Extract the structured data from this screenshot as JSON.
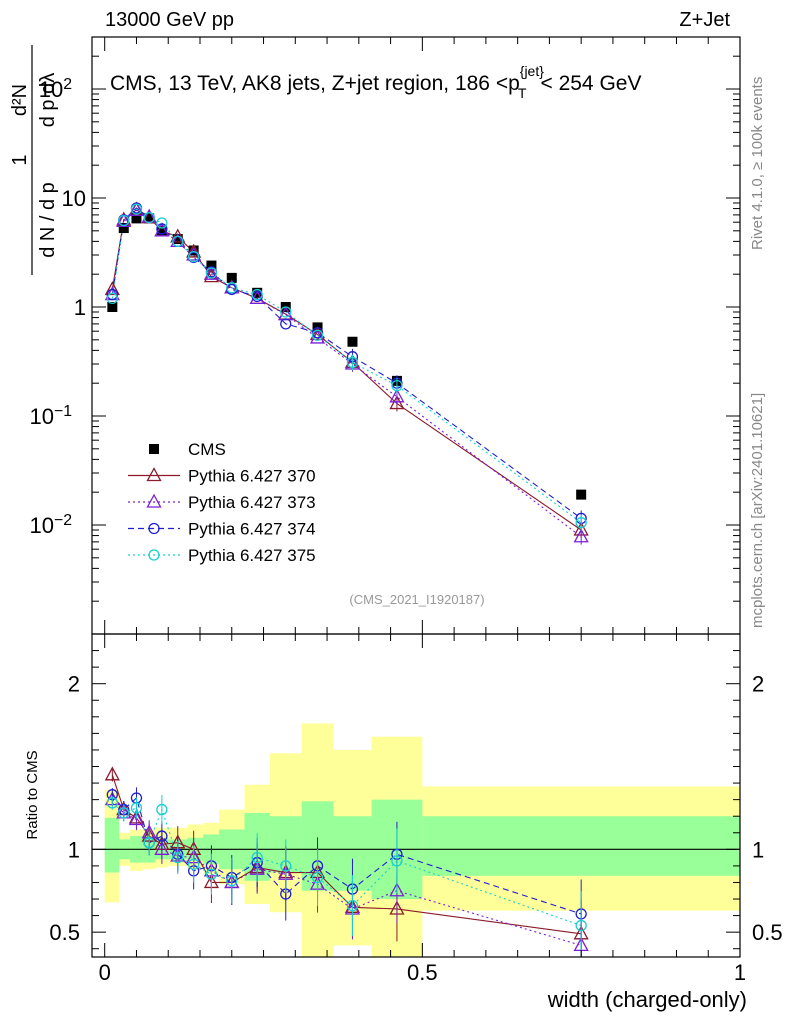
{
  "header": {
    "energy_label": "13000 GeV pp",
    "process_label": "Z+Jet",
    "rivet_label": "Rivet 4.1.0, ≥ 100k events",
    "mcplots_label": "mcplots.cern.ch [arXiv:2401.10621]"
  },
  "chart_data": [
    {
      "type": "line",
      "panel": "main",
      "title": "CMS, 13 TeV, AK8 jets, Z+jet region, 186 <p_T^{jet}< 254 GeV",
      "analysis_id": "(CMS_2021_I1920187)",
      "xlabel": "width (charged-only)",
      "ylabel": "1/dN/dp_T · d²N/dp_T dλ",
      "yscale": "log",
      "xlim": [
        -0.02,
        1.0
      ],
      "ylim": [
        0.001,
        300
      ],
      "y_tick_labels": [
        "10^{-2}",
        "10^{-1}",
        "1",
        "10",
        "10^{2}"
      ],
      "x": [
        0.012,
        0.03,
        0.05,
        0.07,
        0.09,
        0.115,
        0.14,
        0.168,
        0.2,
        0.24,
        0.285,
        0.335,
        0.39,
        0.46,
        0.75
      ],
      "series": [
        {
          "name": "CMS",
          "marker": "square",
          "color": "#000000",
          "values": [
            1.0,
            5.3,
            6.5,
            6.5,
            5.0,
            4.2,
            3.3,
            2.4,
            1.85,
            1.35,
            1.0,
            0.65,
            0.48,
            0.21,
            0.019
          ]
        },
        {
          "name": "Pythia 6.427 370",
          "marker": "triangle",
          "line": "solid",
          "color": "#8B1A2B",
          "values": [
            1.45,
            6.3,
            7.8,
            6.6,
            5.0,
            4.4,
            3.2,
            1.9,
            1.5,
            1.2,
            0.86,
            0.56,
            0.31,
            0.13,
            0.009
          ]
        },
        {
          "name": "Pythia 6.427 373",
          "marker": "triangle",
          "line": "dotted",
          "color": "#7B1FD6",
          "values": [
            1.3,
            6.1,
            7.7,
            6.7,
            5.0,
            4.0,
            3.0,
            2.0,
            1.5,
            1.2,
            0.85,
            0.52,
            0.3,
            0.15,
            0.0078
          ]
        },
        {
          "name": "Pythia 6.427 374",
          "marker": "circle",
          "line": "dashed",
          "color": "#1F1FD0",
          "values": [
            1.3,
            6.3,
            8.1,
            6.6,
            5.2,
            4.0,
            2.85,
            2.1,
            1.45,
            1.25,
            0.7,
            0.58,
            0.35,
            0.2,
            0.0115
          ]
        },
        {
          "name": "Pythia 6.427 375",
          "marker": "circle",
          "line": "dotted",
          "color": "#19CFCF",
          "values": [
            1.2,
            6.2,
            7.9,
            6.6,
            5.9,
            4.0,
            2.9,
            2.05,
            1.5,
            1.3,
            0.9,
            0.55,
            0.31,
            0.19,
            0.0105
          ]
        }
      ]
    },
    {
      "type": "line",
      "panel": "ratio",
      "ylabel": "Ratio to CMS",
      "xlabel": "width (charged-only)",
      "ylim": [
        0.35,
        2.3
      ],
      "y_ticks": [
        0.5,
        1,
        2
      ],
      "x_ticks": [
        0,
        0.5,
        1
      ],
      "x_tick_labels": [
        "0",
        "0.5",
        "1"
      ],
      "bands": {
        "edges": [
          0.0,
          0.023,
          0.04,
          0.06,
          0.08,
          0.1,
          0.13,
          0.155,
          0.18,
          0.22,
          0.26,
          0.31,
          0.36,
          0.42,
          0.5,
          1.0
        ],
        "inner": [
          [
            0.86,
            1.19
          ],
          [
            0.94,
            1.06
          ],
          [
            0.92,
            1.08
          ],
          [
            0.92,
            1.08
          ],
          [
            0.94,
            1.07
          ],
          [
            0.94,
            1.06
          ],
          [
            0.93,
            1.07
          ],
          [
            0.91,
            1.09
          ],
          [
            0.88,
            1.12
          ],
          [
            0.81,
            1.22
          ],
          [
            0.86,
            1.2
          ],
          [
            0.75,
            1.29
          ],
          [
            0.75,
            1.2
          ],
          [
            0.7,
            1.3
          ],
          [
            0.84,
            1.2
          ]
        ],
        "outer": [
          [
            0.68,
            1.36
          ],
          [
            0.9,
            1.1
          ],
          [
            0.87,
            1.12
          ],
          [
            0.88,
            1.12
          ],
          [
            0.89,
            1.13
          ],
          [
            0.9,
            1.13
          ],
          [
            0.88,
            1.15
          ],
          [
            0.85,
            1.16
          ],
          [
            0.79,
            1.24
          ],
          [
            0.67,
            1.39
          ],
          [
            0.62,
            1.58
          ],
          [
            0.3,
            1.76
          ],
          [
            0.42,
            1.6
          ],
          [
            0.2,
            1.68
          ],
          [
            0.63,
            1.38
          ]
        ],
        "inner_color": "#99FF99",
        "outer_color": "#FFFF99"
      },
      "series": [
        {
          "name": "Pythia 6.427 370",
          "color": "#8B1A2B",
          "values": [
            1.45,
            1.24,
            1.19,
            1.08,
            1.03,
            1.04,
            1.0,
            0.8,
            0.8,
            0.89,
            0.86,
            0.86,
            0.65,
            0.64,
            0.49
          ]
        },
        {
          "name": "Pythia 6.427 373",
          "color": "#7B1FD6",
          "values": [
            1.3,
            1.22,
            1.18,
            1.1,
            1.0,
            0.96,
            0.95,
            0.87,
            0.8,
            0.88,
            0.85,
            0.79,
            0.64,
            0.75,
            0.42
          ]
        },
        {
          "name": "Pythia 6.427 374",
          "color": "#1F1FD0",
          "values": [
            1.33,
            1.24,
            1.31,
            1.04,
            1.08,
            0.97,
            0.87,
            0.9,
            0.83,
            0.92,
            0.73,
            0.9,
            0.76,
            0.97,
            0.61
          ]
        },
        {
          "name": "Pythia 6.427 375",
          "color": "#19CFCF",
          "values": [
            1.28,
            1.22,
            1.25,
            1.04,
            1.24,
            0.95,
            0.91,
            0.85,
            0.81,
            0.95,
            0.9,
            0.83,
            0.66,
            0.93,
            0.54
          ]
        }
      ]
    }
  ]
}
